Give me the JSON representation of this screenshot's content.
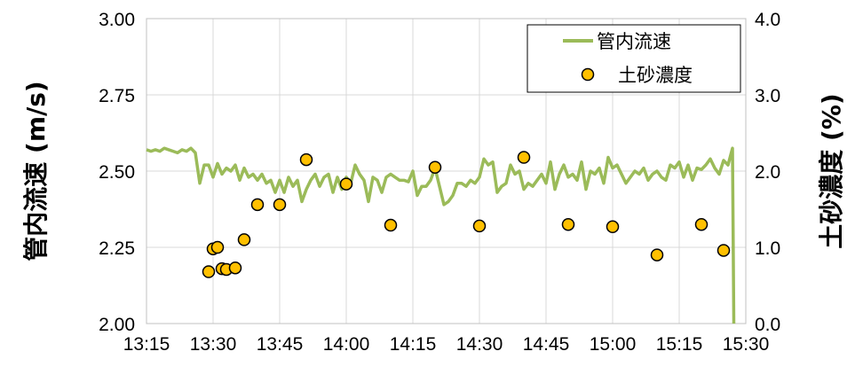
{
  "chart_data": {
    "type": "line",
    "y_left_label": "管内流速 (m/s)",
    "y_right_label": "土砂濃度 (%)",
    "x_ticks": [
      "13:15",
      "13:30",
      "13:45",
      "14:00",
      "14:15",
      "14:30",
      "14:45",
      "15:00",
      "15:15",
      "15:30"
    ],
    "y_left_ticks": [
      "2.00",
      "2.25",
      "2.50",
      "2.75",
      "3.00"
    ],
    "y_right_ticks": [
      "0.0",
      "1.0",
      "2.0",
      "3.0",
      "4.0"
    ],
    "x_range": [
      "13:15",
      "15:30"
    ],
    "y_left_range": [
      2.0,
      3.0
    ],
    "y_right_range": [
      0.0,
      4.0
    ],
    "grid": true,
    "legend_position": "top-right",
    "colors": {
      "velocity": "#9bbb59",
      "concentration_fill": "#ffc000",
      "concentration_edge": "#000000",
      "grid": "#d9d9d9"
    },
    "series": [
      {
        "name": "管内流速",
        "axis": "left",
        "kind": "line",
        "points": [
          [
            "13:15",
            2.57
          ],
          [
            "13:16",
            2.565
          ],
          [
            "13:17",
            2.57
          ],
          [
            "13:18",
            2.565
          ],
          [
            "13:19",
            2.575
          ],
          [
            "13:20",
            2.57
          ],
          [
            "13:21",
            2.565
          ],
          [
            "13:22",
            2.56
          ],
          [
            "13:23",
            2.57
          ],
          [
            "13:24",
            2.565
          ],
          [
            "13:25",
            2.575
          ],
          [
            "13:26",
            2.56
          ],
          [
            "13:27",
            2.46
          ],
          [
            "13:28",
            2.52
          ],
          [
            "13:29",
            2.52
          ],
          [
            "13:30",
            2.48
          ],
          [
            "13:31",
            2.525
          ],
          [
            "13:32",
            2.49
          ],
          [
            "13:33",
            2.51
          ],
          [
            "13:34",
            2.5
          ],
          [
            "13:35",
            2.52
          ],
          [
            "13:36",
            2.47
          ],
          [
            "13:37",
            2.51
          ],
          [
            "13:38",
            2.48
          ],
          [
            "13:39",
            2.49
          ],
          [
            "13:40",
            2.47
          ],
          [
            "13:41",
            2.49
          ],
          [
            "13:42",
            2.46
          ],
          [
            "13:43",
            2.47
          ],
          [
            "13:44",
            2.43
          ],
          [
            "13:45",
            2.47
          ],
          [
            "13:46",
            2.43
          ],
          [
            "13:47",
            2.48
          ],
          [
            "13:48",
            2.45
          ],
          [
            "13:49",
            2.47
          ],
          [
            "13:50",
            2.4
          ],
          [
            "13:51",
            2.44
          ],
          [
            "13:52",
            2.47
          ],
          [
            "13:53",
            2.49
          ],
          [
            "13:54",
            2.45
          ],
          [
            "13:55",
            2.48
          ],
          [
            "13:56",
            2.49
          ],
          [
            "13:57",
            2.43
          ],
          [
            "13:58",
            2.48
          ],
          [
            "13:59",
            2.44
          ],
          [
            "14:00",
            2.48
          ],
          [
            "14:01",
            2.46
          ],
          [
            "14:02",
            2.52
          ],
          [
            "14:03",
            2.49
          ],
          [
            "14:04",
            2.47
          ],
          [
            "14:05",
            2.4
          ],
          [
            "14:06",
            2.48
          ],
          [
            "14:07",
            2.47
          ],
          [
            "14:08",
            2.43
          ],
          [
            "14:09",
            2.48
          ],
          [
            "14:10",
            2.49
          ],
          [
            "14:11",
            2.48
          ],
          [
            "14:12",
            2.47
          ],
          [
            "14:13",
            2.47
          ],
          [
            "14:14",
            2.465
          ],
          [
            "14:15",
            2.5
          ],
          [
            "14:16",
            2.42
          ],
          [
            "14:17",
            2.45
          ],
          [
            "14:18",
            2.45
          ],
          [
            "14:19",
            2.47
          ],
          [
            "14:20",
            2.51
          ],
          [
            "14:21",
            2.45
          ],
          [
            "14:22",
            2.39
          ],
          [
            "14:23",
            2.4
          ],
          [
            "14:24",
            2.42
          ],
          [
            "14:25",
            2.46
          ],
          [
            "14:26",
            2.46
          ],
          [
            "14:27",
            2.45
          ],
          [
            "14:28",
            2.47
          ],
          [
            "14:29",
            2.46
          ],
          [
            "14:30",
            2.48
          ],
          [
            "14:31",
            2.54
          ],
          [
            "14:32",
            2.52
          ],
          [
            "14:33",
            2.53
          ],
          [
            "14:34",
            2.43
          ],
          [
            "14:35",
            2.45
          ],
          [
            "14:36",
            2.46
          ],
          [
            "14:37",
            2.52
          ],
          [
            "14:38",
            2.49
          ],
          [
            "14:39",
            2.5
          ],
          [
            "14:40",
            2.44
          ],
          [
            "14:41",
            2.46
          ],
          [
            "14:42",
            2.45
          ],
          [
            "14:43",
            2.47
          ],
          [
            "14:44",
            2.49
          ],
          [
            "14:45",
            2.46
          ],
          [
            "14:46",
            2.53
          ],
          [
            "14:47",
            2.44
          ],
          [
            "14:48",
            2.49
          ],
          [
            "14:49",
            2.52
          ],
          [
            "14:50",
            2.48
          ],
          [
            "14:51",
            2.49
          ],
          [
            "14:52",
            2.47
          ],
          [
            "14:53",
            2.53
          ],
          [
            "14:54",
            2.44
          ],
          [
            "14:55",
            2.5
          ],
          [
            "14:56",
            2.49
          ],
          [
            "14:57",
            2.51
          ],
          [
            "14:58",
            2.46
          ],
          [
            "14:59",
            2.545
          ],
          [
            "15:00",
            2.51
          ],
          [
            "15:01",
            2.52
          ],
          [
            "15:02",
            2.49
          ],
          [
            "15:03",
            2.46
          ],
          [
            "15:04",
            2.48
          ],
          [
            "15:05",
            2.5
          ],
          [
            "15:06",
            2.49
          ],
          [
            "15:07",
            2.51
          ],
          [
            "15:08",
            2.47
          ],
          [
            "15:09",
            2.49
          ],
          [
            "15:10",
            2.5
          ],
          [
            "15:11",
            2.48
          ],
          [
            "15:12",
            2.47
          ],
          [
            "15:13",
            2.52
          ],
          [
            "15:14",
            2.51
          ],
          [
            "15:15",
            2.53
          ],
          [
            "15:16",
            2.48
          ],
          [
            "15:17",
            2.52
          ],
          [
            "15:18",
            2.47
          ],
          [
            "15:19",
            2.51
          ],
          [
            "15:20",
            2.505
          ],
          [
            "15:21",
            2.52
          ],
          [
            "15:22",
            2.54
          ],
          [
            "15:23",
            2.51
          ],
          [
            "15:24",
            2.49
          ],
          [
            "15:25",
            2.535
          ],
          [
            "15:26",
            2.52
          ],
          [
            "15:27",
            2.575
          ],
          [
            "15:27.3",
            2.0
          ]
        ]
      },
      {
        "name": "土砂濃度",
        "axis": "right",
        "kind": "scatter",
        "points": [
          [
            "13:29",
            0.68
          ],
          [
            "13:30",
            0.98
          ],
          [
            "13:31",
            1.0
          ],
          [
            "13:32",
            0.72
          ],
          [
            "13:33",
            0.71
          ],
          [
            "13:35",
            0.73
          ],
          [
            "13:37",
            1.1
          ],
          [
            "13:40",
            1.56
          ],
          [
            "13:45",
            1.56
          ],
          [
            "13:51",
            2.15
          ],
          [
            "14:00",
            1.83
          ],
          [
            "14:10",
            1.29
          ],
          [
            "14:20",
            2.05
          ],
          [
            "14:30",
            1.28
          ],
          [
            "14:40",
            2.18
          ],
          [
            "14:50",
            1.3
          ],
          [
            "15:00",
            1.27
          ],
          [
            "15:10",
            0.9
          ],
          [
            "15:20",
            1.3
          ],
          [
            "15:25",
            0.96
          ]
        ]
      }
    ]
  }
}
